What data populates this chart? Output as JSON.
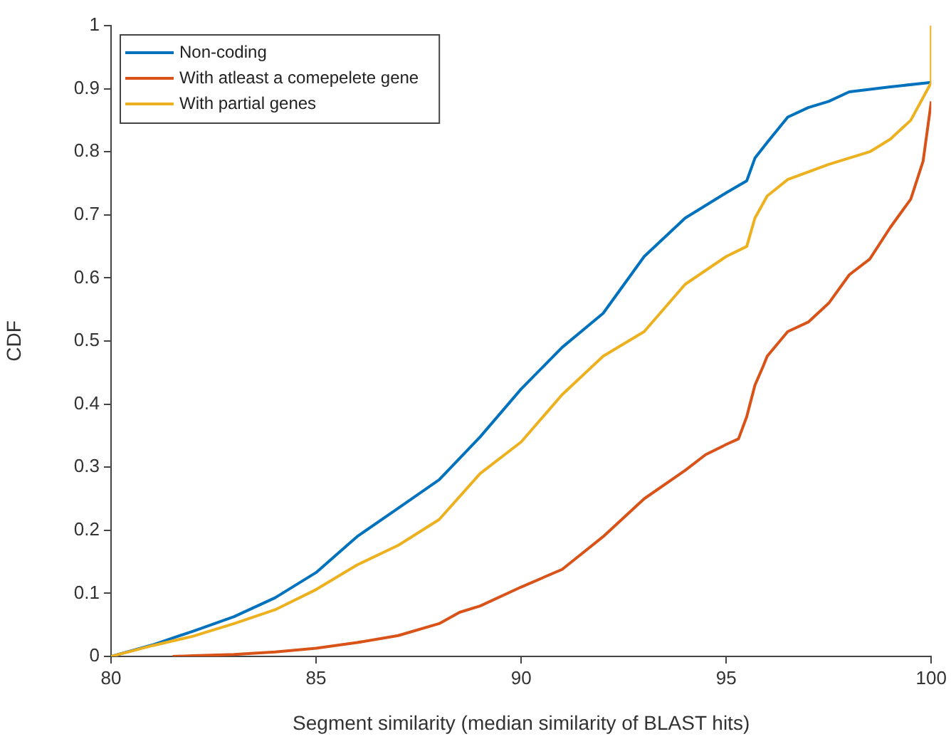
{
  "chart_data": {
    "type": "line",
    "xlabel": "Segment similarity (median similarity of BLAST hits)",
    "ylabel": "CDF",
    "xlim": [
      80,
      100
    ],
    "xticks": [
      80,
      85,
      90,
      95,
      100
    ],
    "ylim": [
      0,
      1
    ],
    "yticks": [
      0,
      0.1,
      0.2,
      0.3,
      0.4,
      0.5,
      0.6,
      0.7,
      0.8,
      0.9,
      1
    ],
    "legend": "top left",
    "grid": false,
    "marker": "none",
    "line_style": "solid",
    "series": [
      {
        "name": "Non-coding",
        "color": "#0072bd",
        "x": [
          80,
          81,
          82,
          83,
          84,
          85,
          86,
          87,
          88,
          89,
          90,
          91,
          92,
          93,
          94,
          95,
          95.5,
          95.7,
          96,
          96.5,
          97,
          97.5,
          98,
          99,
          100
        ],
        "values": [
          0,
          0.018,
          0.04,
          0.063,
          0.093,
          0.133,
          0.19,
          0.235,
          0.28,
          0.348,
          0.424,
          0.49,
          0.544,
          0.634,
          0.695,
          0.735,
          0.754,
          0.79,
          0.815,
          0.855,
          0.87,
          0.88,
          0.895,
          0.903,
          0.91
        ]
      },
      {
        "name": "With atleast a comepelete gene",
        "color": "#d95319",
        "x": [
          81.5,
          82,
          83,
          84,
          85,
          86,
          87,
          88,
          88.5,
          89,
          90,
          91,
          92,
          93,
          94,
          94.5,
          95,
          95.3,
          95.5,
          95.7,
          95.9,
          96,
          96.5,
          97,
          97.5,
          98,
          98.5,
          99,
          99.5,
          99.8,
          100
        ],
        "values": [
          0,
          0.001,
          0.003,
          0.007,
          0.013,
          0.022,
          0.033,
          0.052,
          0.07,
          0.08,
          0.11,
          0.138,
          0.19,
          0.25,
          0.295,
          0.32,
          0.336,
          0.345,
          0.38,
          0.43,
          0.46,
          0.476,
          0.515,
          0.53,
          0.56,
          0.605,
          0.63,
          0.68,
          0.725,
          0.785,
          0.88
        ]
      },
      {
        "name": "With partial genes",
        "color": "#edb120",
        "x": [
          80,
          81,
          82,
          83,
          84,
          85,
          86,
          87,
          88,
          89,
          90,
          91,
          92,
          93,
          94,
          95,
          95.5,
          95.7,
          96,
          96.5,
          97.5,
          98.5,
          99,
          99.5,
          100,
          100
        ],
        "values": [
          0,
          0.017,
          0.032,
          0.052,
          0.074,
          0.106,
          0.145,
          0.176,
          0.217,
          0.29,
          0.34,
          0.415,
          0.476,
          0.515,
          0.59,
          0.634,
          0.65,
          0.695,
          0.73,
          0.756,
          0.78,
          0.8,
          0.82,
          0.85,
          0.91,
          1
        ]
      }
    ]
  }
}
